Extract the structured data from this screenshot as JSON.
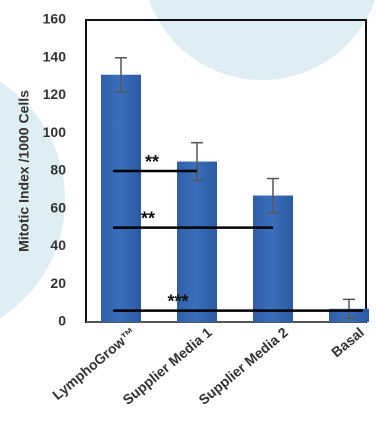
{
  "chart_data": {
    "type": "bar",
    "categories": [
      "LymphoGrow™",
      "Supplier Media 1",
      "Supplier Media 2",
      "Basal"
    ],
    "values": [
      131,
      85,
      67,
      7
    ],
    "errors": [
      9,
      10,
      9,
      5
    ],
    "ylabel": "Mitotic Index /1000 Cells",
    "ylim": [
      0,
      160
    ],
    "yticks": [
      0,
      20,
      40,
      60,
      80,
      100,
      120,
      140,
      160
    ],
    "grid": false,
    "bar_color": "#3a6fbd",
    "significance": [
      {
        "label": "**",
        "y": 80,
        "from_category": 0,
        "to_category": 1
      },
      {
        "label": "**",
        "y": 50,
        "from_category": 0,
        "to_category": 2
      },
      {
        "label": "***",
        "y": 6,
        "from_category": 0,
        "to_category": 3
      }
    ]
  },
  "background": {
    "circle_color": "#deeef3"
  }
}
